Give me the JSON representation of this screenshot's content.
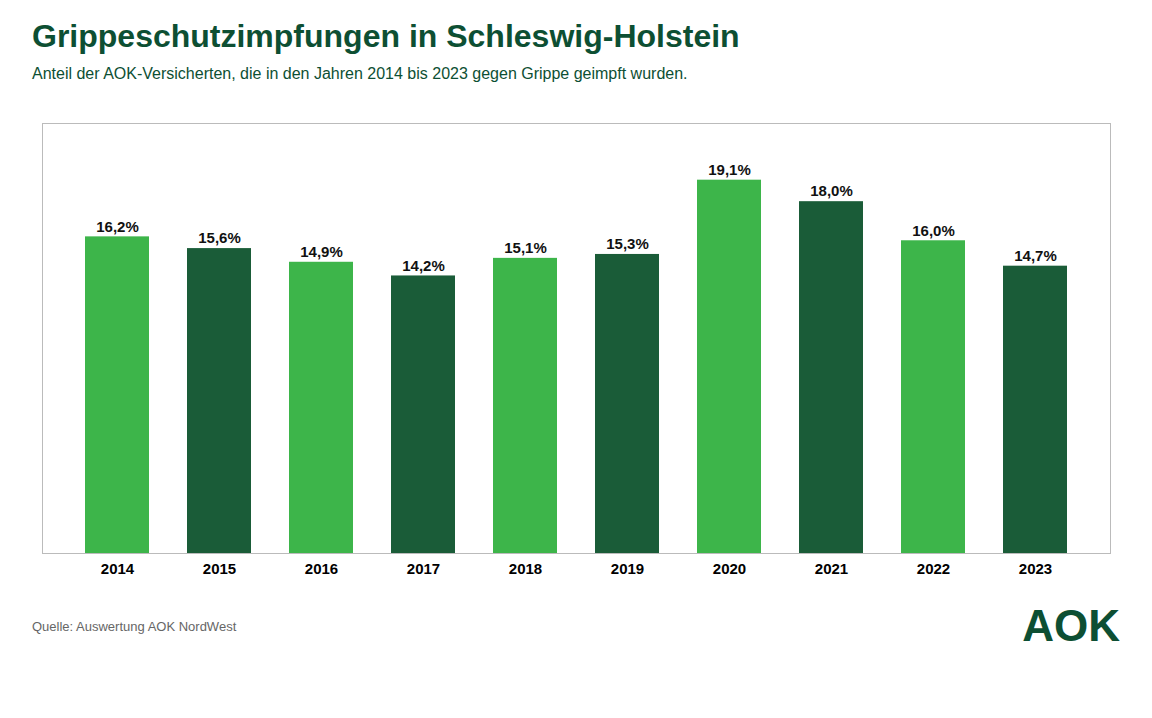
{
  "chart_data": {
    "type": "bar",
    "title": "Grippeschutzimpfungen in Schleswig-Holstein",
    "subtitle": "Anteil der AOK-Versicherten, die in den Jahren 2014 bis 2023 gegen Grippe geimpft wurden.",
    "annotations": [
      "Quelle: Auswertung AOK NordWest",
      "AOK"
    ],
    "categories": [
      "2014",
      "2015",
      "2016",
      "2017",
      "2018",
      "2019",
      "2020",
      "2021",
      "2022",
      "2023"
    ],
    "values": [
      16.2,
      15.6,
      14.9,
      14.2,
      15.1,
      15.3,
      19.1,
      18.0,
      16.0,
      14.7
    ],
    "value_labels": [
      "16,2%",
      "15,6%",
      "14,9%",
      "14,2%",
      "15,1%",
      "15,3%",
      "19,1%",
      "18,0%",
      "16,0%",
      "14,7%"
    ],
    "colors": [
      "#3db54a",
      "#1a5c38",
      "#3db54a",
      "#1a5c38",
      "#3db54a",
      "#1a5c38",
      "#3db54a",
      "#1a5c38",
      "#3db54a",
      "#1a5c38"
    ],
    "ylim": [
      0,
      22
    ],
    "grid": false,
    "data_labels": true,
    "tick_labels": "x"
  }
}
